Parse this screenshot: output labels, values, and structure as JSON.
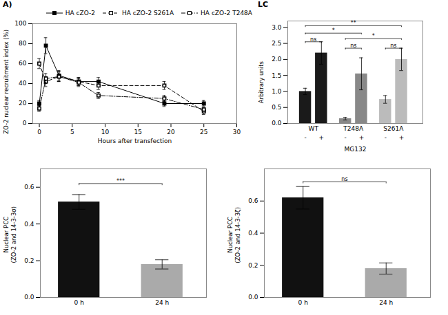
{
  "chart_data": [
    {
      "type": "line",
      "title": "A)",
      "xlabel": "Hours after transfection",
      "ylabel": "ZO-2 nuclear recruitment index (%)",
      "x": [
        0,
        1,
        3,
        6,
        9,
        19,
        25
      ],
      "xlim": [
        -1,
        30
      ],
      "xticks": [
        0,
        5,
        10,
        15,
        20,
        25,
        30
      ],
      "ylim": [
        0,
        100
      ],
      "yticks": [
        0,
        20,
        40,
        60,
        80,
        100
      ],
      "legend": "upper right",
      "grid": false,
      "series": [
        {
          "name": "HA cZO-2",
          "values": [
            20,
            78,
            48,
            42,
            42,
            20,
            20
          ],
          "errors": [
            3,
            8,
            5,
            4,
            4,
            3,
            3
          ],
          "color": "black",
          "line_style": "solid",
          "marker": "square"
        },
        {
          "name": "HA cZO-2 S261A",
          "values": [
            60,
            42,
            47,
            42,
            38,
            38,
            12
          ],
          "errors": [
            5,
            5,
            5,
            4,
            4,
            4,
            3
          ],
          "color": "black",
          "line_style": "dashed",
          "marker": "square-open"
        },
        {
          "name": "HA cZO-2 T248A",
          "values": [
            15,
            45,
            47,
            41,
            28,
            25,
            14
          ],
          "errors": [
            3,
            5,
            5,
            4,
            3,
            3,
            2
          ],
          "color": "black",
          "line_style": "dashdot",
          "marker": "square-open"
        }
      ]
    },
    {
      "type": "bar",
      "title": "LC",
      "ylabel": "Arbitrary units",
      "xlabel": "MG132",
      "groups": [
        "WT",
        "T248A",
        "S261A"
      ],
      "categories": [
        "-",
        "+",
        "-",
        "+",
        "-",
        "+"
      ],
      "values": [
        1.0,
        2.2,
        0.15,
        1.55,
        0.75,
        2.0
      ],
      "errors": [
        0.1,
        0.35,
        0.04,
        0.5,
        0.12,
        0.35
      ],
      "colors": [
        "#1a1a1a",
        "#1a1a1a",
        "#888888",
        "#888888",
        "#bbbbbb",
        "#bbbbbb"
      ],
      "ylim": [
        0,
        3.2
      ],
      "yticks": [
        {
          "value": 0,
          "label": "0.0"
        },
        {
          "value": 0.5,
          "label": "0.5"
        },
        {
          "value": 1,
          "label": "1.0"
        },
        {
          "value": 1.5,
          "label": "1.5"
        },
        {
          "value": 2,
          "label": "2.0"
        },
        {
          "value": 2.5,
          "label": "2.5"
        },
        {
          "value": 3,
          "label": "3.0"
        }
      ],
      "annotations": [
        {
          "bars": [
            0,
            5
          ],
          "y": 3.05,
          "text": "**"
        },
        {
          "bars": [
            0,
            3
          ],
          "y": 2.82,
          "text": "*"
        },
        {
          "bars": [
            2,
            5
          ],
          "y": 2.65,
          "text": "*"
        },
        {
          "bars": [
            0,
            1
          ],
          "y": 2.55,
          "text": "ns"
        },
        {
          "bars": [
            2,
            3
          ],
          "y": 2.35,
          "text": "ns"
        },
        {
          "bars": [
            4,
            5
          ],
          "y": 2.35,
          "text": "ns"
        }
      ],
      "grid": false
    },
    {
      "type": "bar",
      "ylabel": "Nuclear PCC\n(ZO-2 and 14-3-3σ)",
      "categories": [
        "0 h",
        "24 h"
      ],
      "values": [
        0.52,
        0.18
      ],
      "errors": [
        0.04,
        0.025
      ],
      "colors": [
        "#111111",
        "#aaaaaa"
      ],
      "ylim": [
        0.0,
        0.7
      ],
      "yticks": [
        {
          "value": 0,
          "label": "0.0"
        },
        {
          "value": 0.2,
          "label": "0.2"
        },
        {
          "value": 0.4,
          "label": "0.4"
        },
        {
          "value": 0.6,
          "label": "0.6"
        }
      ],
      "annotations": [
        {
          "bars": [
            0,
            1
          ],
          "y": 0.62,
          "text": "***"
        }
      ],
      "grid": false
    },
    {
      "type": "bar",
      "ylabel": "Nuclear PCC\n(ZO-2 and 14-3-3ζ)",
      "categories": [
        "0 h",
        "24 h"
      ],
      "values": [
        0.62,
        0.18
      ],
      "errors": [
        0.07,
        0.035
      ],
      "colors": [
        "#111111",
        "#aaaaaa"
      ],
      "ylim": [
        0.0,
        0.8
      ],
      "yticks": [
        {
          "value": 0,
          "label": "0.0"
        },
        {
          "value": 0.2,
          "label": "0.2"
        },
        {
          "value": 0.4,
          "label": "0.4"
        },
        {
          "value": 0.6,
          "label": "0.6"
        }
      ],
      "annotations": [
        {
          "bars": [
            0,
            1
          ],
          "y": 0.72,
          "text": "ns"
        }
      ],
      "grid": false
    }
  ]
}
